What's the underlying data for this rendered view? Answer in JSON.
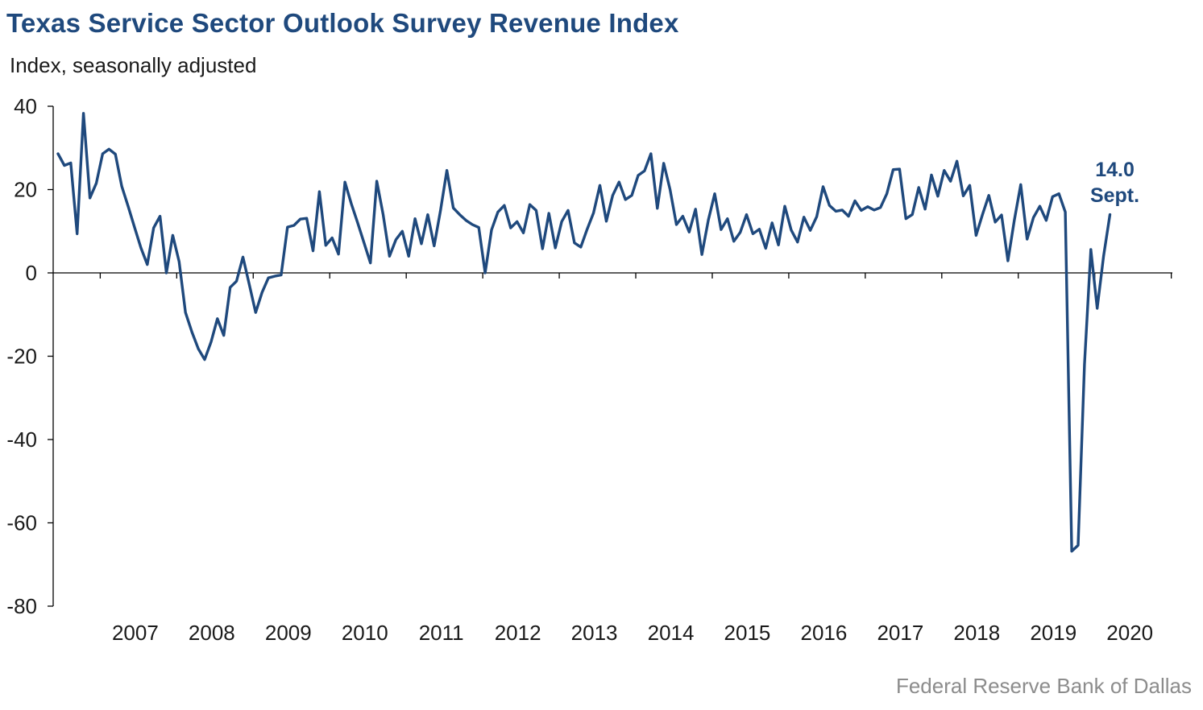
{
  "chart_data": {
    "type": "line",
    "title": "Texas Service Sector Outlook Survey Revenue Index",
    "subtitle": "Index, seasonally adjusted",
    "source": "Federal Reserve Bank of Dallas",
    "ylim": [
      -80,
      40
    ],
    "yticks": [
      40,
      20,
      0,
      -20,
      -40,
      -60,
      -80
    ],
    "ytick_labels": [
      "40",
      "20",
      "0",
      "-20",
      "-40",
      "-60",
      "-80"
    ],
    "xlim": [
      "2006-06",
      "2020-09"
    ],
    "xtick_labels": [
      "2007",
      "2008",
      "2009",
      "2010",
      "2011",
      "2012",
      "2013",
      "2014",
      "2015",
      "2016",
      "2017",
      "2018",
      "2019",
      "2020"
    ],
    "grid": false,
    "line_color": "#1f497d",
    "annotations": [
      {
        "value_text": "14.0",
        "period_text": "Sept."
      }
    ],
    "series": [
      {
        "start": "2006-06",
        "frequency": "monthly",
        "values": [
          28.6,
          25.8,
          26.4,
          9.4,
          38.3,
          18.0,
          21.5,
          28.6,
          29.7,
          28.5,
          20.8,
          16.0,
          11.0,
          6.0,
          2.0,
          10.8,
          13.6,
          0.0,
          9.0,
          2.7,
          -9.5,
          -14.2,
          -18.2,
          -20.8,
          -16.6,
          -11.0,
          -15.0,
          -3.5,
          -2.0,
          3.8,
          -2.8,
          -9.5,
          -4.7,
          -1.2,
          -0.8,
          -0.5,
          11.0,
          11.4,
          12.9,
          13.1,
          5.3,
          19.5,
          6.6,
          8.4,
          4.5,
          21.8,
          16.6,
          12.0,
          7.2,
          2.4,
          22.0,
          14.0,
          4.0,
          8.0,
          10.0,
          4.0,
          13.0,
          7.0,
          14.0,
          6.5,
          15.0,
          24.6,
          15.6,
          14.0,
          12.6,
          11.6,
          10.9,
          0.0,
          10.3,
          14.6,
          16.2,
          10.8,
          12.3,
          9.6,
          16.4,
          15.0,
          5.8,
          14.3,
          6.0,
          12.3,
          15.0,
          7.2,
          6.2,
          10.5,
          14.4,
          21.0,
          12.4,
          18.6,
          21.8,
          17.6,
          18.6,
          23.4,
          24.5,
          28.6,
          15.5,
          26.3,
          20.0,
          11.6,
          13.6,
          9.8,
          15.3,
          4.4,
          12.7,
          19.0,
          10.4,
          13.0,
          7.6,
          9.7,
          14.0,
          9.4,
          10.5,
          5.9,
          12.0,
          6.7,
          16.0,
          10.3,
          7.4,
          13.4,
          10.2,
          13.5,
          20.7,
          16.2,
          14.8,
          15.1,
          13.6,
          17.3,
          15.0,
          15.9,
          15.1,
          15.7,
          19.0,
          24.8,
          24.9,
          13.0,
          14.0,
          20.5,
          15.3,
          23.5,
          18.4,
          24.6,
          22.0,
          26.8,
          18.5,
          21.0,
          9.0,
          14.0,
          18.6,
          12.2,
          13.9,
          2.9,
          12.6,
          21.2,
          8.1,
          13.3,
          16.0,
          12.6,
          18.3,
          19.0,
          14.6,
          -66.8,
          -65.4,
          -22.0,
          5.6,
          -8.5,
          4.0,
          14.0
        ]
      }
    ]
  }
}
